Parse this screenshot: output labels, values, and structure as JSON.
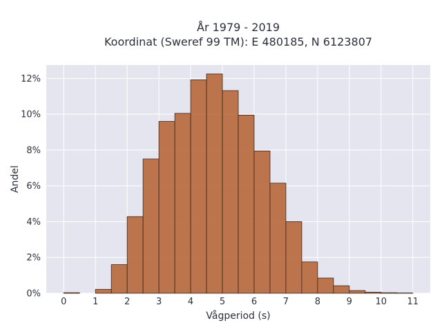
{
  "chart_data": {
    "type": "bar",
    "title_line1": "År 1979 - 2019",
    "title_line2": "Koordinat (Sweref 99 TM): E 480185, N 6123807",
    "xlabel": "Vågperiod (s)",
    "ylabel": "Andel",
    "bin_width": 0.5,
    "bins_start": [
      0,
      0.5,
      1,
      1.5,
      2,
      2.5,
      3,
      3.5,
      4,
      4.5,
      5,
      5.5,
      6,
      6.5,
      7,
      7.5,
      8,
      8.5,
      9,
      9.5,
      10,
      10.5
    ],
    "values": [
      0.03,
      0,
      0.22,
      1.6,
      4.28,
      7.5,
      9.6,
      10.05,
      11.92,
      12.25,
      11.32,
      9.95,
      7.95,
      6.15,
      4.0,
      1.75,
      0.85,
      0.42,
      0.15,
      0.06,
      0.03,
      0.02
    ],
    "xlim": [
      -0.55,
      11.55
    ],
    "ylim": [
      0,
      12.75
    ],
    "x_ticks": [
      0,
      1,
      2,
      3,
      4,
      5,
      6,
      7,
      8,
      9,
      10,
      11
    ],
    "y_ticks": [
      0,
      2,
      4,
      6,
      8,
      10,
      12
    ],
    "y_tick_suffix": "%",
    "grid": true,
    "bar_color": "#b86a3f",
    "bar_edge_color": "#3a2418",
    "plot_bg": "#e5e5f0"
  }
}
